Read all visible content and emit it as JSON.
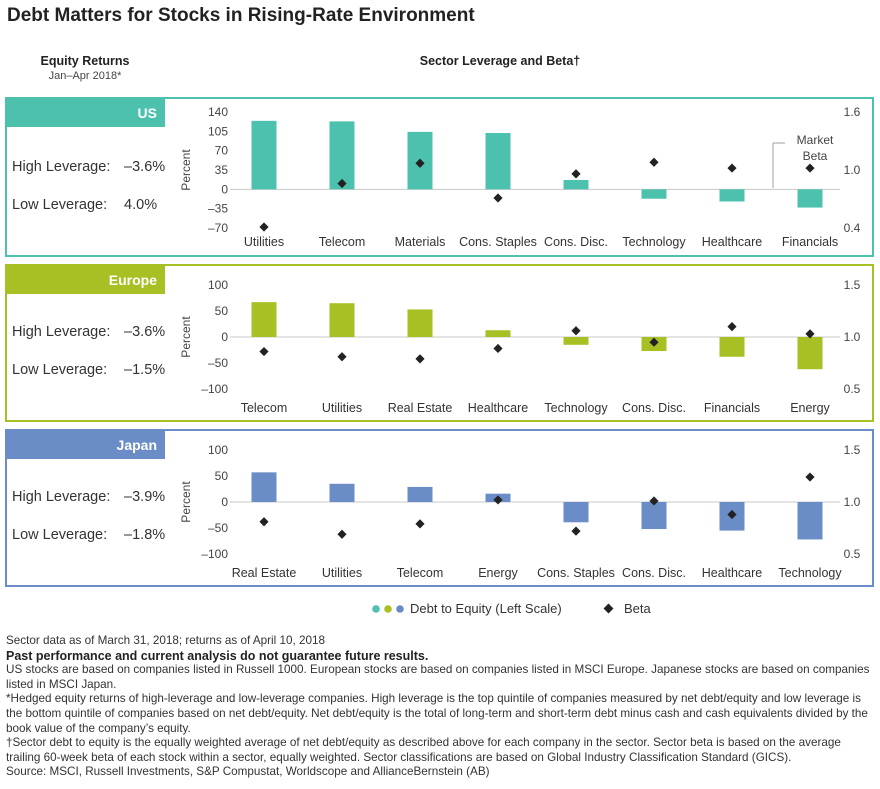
{
  "title": "Debt Matters for Stocks in Rising-Rate Environment",
  "left_header": {
    "title": "Equity Returns",
    "subtitle": "Jan–Apr 2018*"
  },
  "mid_header": {
    "title": "Sector Leverage and Beta†"
  },
  "colors": {
    "us": "#4cc1ad",
    "europe": "#a8c023",
    "japan": "#6a8cc7",
    "beta": "#222222"
  },
  "panels": [
    {
      "region": "US",
      "high_label": "High Leverage:",
      "high_value": "–3.6%",
      "low_label": "Low Leverage:",
      "low_value": "4.0%"
    },
    {
      "region": "Europe",
      "high_label": "High Leverage:",
      "high_value": "–3.6%",
      "low_label": "Low Leverage:",
      "low_value": "–1.5%"
    },
    {
      "region": "Japan",
      "high_label": "High Leverage:",
      "high_value": "–3.9%",
      "low_label": "Low Leverage:",
      "low_value": "–1.8%"
    }
  ],
  "chart_data": [
    {
      "type": "bar",
      "region": "US",
      "categories": [
        "Utilities",
        "Telecom",
        "Materials",
        "Cons. Staples",
        "Cons. Disc.",
        "Technology",
        "Healthcare",
        "Financials"
      ],
      "series": [
        {
          "name": "Debt to Equity (Left Scale)",
          "axis": "left",
          "values": [
            124,
            123,
            104,
            102,
            17,
            -17,
            -22,
            -33
          ]
        },
        {
          "name": "Beta",
          "axis": "right",
          "marker": "diamond",
          "values": [
            0.41,
            0.86,
            1.07,
            0.71,
            0.96,
            1.08,
            1.02,
            1.02
          ]
        }
      ],
      "ylabel": "Percent",
      "y_left": {
        "ticks": [
          140,
          105,
          70,
          35,
          0,
          -35,
          -70
        ],
        "range": [
          -70,
          140
        ]
      },
      "y_right": {
        "ticks": [
          1.6,
          1.0,
          0.4
        ],
        "range": [
          0.4,
          1.6
        ]
      },
      "annotation": {
        "line1": "Market",
        "line2": "Beta"
      }
    },
    {
      "type": "bar",
      "region": "Europe",
      "categories": [
        "Telecom",
        "Utilities",
        "Real Estate",
        "Healthcare",
        "Technology",
        "Cons. Disc.",
        "Financials",
        "Energy"
      ],
      "series": [
        {
          "name": "Debt to Equity (Left Scale)",
          "axis": "left",
          "values": [
            67,
            65,
            53,
            13,
            -15,
            -27,
            -38,
            -62
          ]
        },
        {
          "name": "Beta",
          "axis": "right",
          "marker": "diamond",
          "values": [
            0.86,
            0.81,
            0.79,
            0.89,
            1.06,
            0.95,
            1.1,
            1.03
          ]
        }
      ],
      "ylabel": "Percent",
      "y_left": {
        "ticks": [
          100,
          50,
          0,
          -50,
          -100
        ],
        "range": [
          -100,
          100
        ]
      },
      "y_right": {
        "ticks": [
          1.5,
          1.0,
          0.5
        ],
        "range": [
          0.5,
          1.5
        ]
      }
    },
    {
      "type": "bar",
      "region": "Japan",
      "categories": [
        "Real Estate",
        "Utilities",
        "Telecom",
        "Energy",
        "Cons. Staples",
        "Cons. Disc.",
        "Healthcare",
        "Technology"
      ],
      "series": [
        {
          "name": "Debt to Equity (Left Scale)",
          "axis": "left",
          "values": [
            57,
            35,
            29,
            16,
            -39,
            -52,
            -55,
            -72
          ]
        },
        {
          "name": "Beta",
          "axis": "right",
          "marker": "diamond",
          "values": [
            0.81,
            0.69,
            0.79,
            1.02,
            0.72,
            1.01,
            0.88,
            1.24
          ]
        }
      ],
      "ylabel": "Percent",
      "y_left": {
        "ticks": [
          100,
          50,
          0,
          -50,
          -100
        ],
        "range": [
          -100,
          100
        ]
      },
      "y_right": {
        "ticks": [
          1.5,
          1.0,
          0.5
        ],
        "range": [
          0.5,
          1.5
        ]
      }
    }
  ],
  "legend": {
    "debt_label": "Debt to Equity (Left Scale)",
    "beta_label": "Beta"
  },
  "notes": {
    "line1": "Sector data as of March 31, 2018; returns as of April 10, 2018",
    "disclaimer": "Past performance and current analysis do not guarantee future results.",
    "p1": "US stocks are based on companies listed in Russell 1000. European stocks are based on companies listed in MSCI Europe. Japanese stocks are based on companies listed in MSCI Japan.",
    "p2": "*Hedged equity returns of high-leverage and low-leverage companies. High leverage is the top quintile of companies measured by net debt/equity and low leverage is the bottom quintile of companies based on net debt/equity. Net debt/equity is the total of long-term and short-term debt minus cash and cash equivalents divided by the book value of the company’s equity.",
    "p3": "†Sector debt to equity is the equally weighted average of net debt/equity as described above for each company in the sector. Sector beta is based on the average trailing 60-week beta of each stock within a sector, equally weighted. Sector classifications are based on Global Industry Classification Standard (GICS).",
    "source": "Source: MSCI, Russell Investments, S&P Compustat, Worldscope and AllianceBernstein (AB)"
  }
}
